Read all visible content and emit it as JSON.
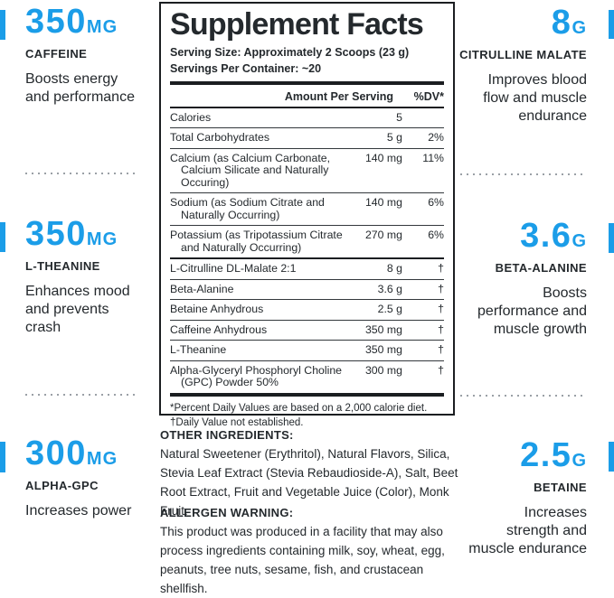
{
  "colors": {
    "accent": "#1b9de8",
    "ink": "#24292d"
  },
  "callouts": {
    "left": [
      {
        "value": "350",
        "unit": "MG",
        "name": "CAFFEINE",
        "desc": "Boosts energy\nand performance"
      },
      {
        "value": "350",
        "unit": "MG",
        "name": "L-THEANINE",
        "desc": "Enhances mood\nand prevents\ncrash"
      },
      {
        "value": "300",
        "unit": "MG",
        "name": "ALPHA-GPC",
        "desc": "Increases power"
      }
    ],
    "right": [
      {
        "value": "8",
        "unit": "G",
        "name": "CITRULLINE MALATE",
        "desc": "Improves blood\nflow and muscle\nendurance"
      },
      {
        "value": "3.6",
        "unit": "G",
        "name": "BETA-ALANINE",
        "desc": "Boosts\nperformance and\nmuscle growth"
      },
      {
        "value": "2.5",
        "unit": "G",
        "name": "BETAINE",
        "desc": "Increases\nstrength and\nmuscle endurance"
      }
    ]
  },
  "facts": {
    "title": "Supplement Facts",
    "serving_size": "Serving Size: Approximately 2 Scoops (23 g)",
    "servings_per_container": "Servings Per Container: ~20",
    "col_amount": "Amount Per Serving",
    "col_dv": "%DV*",
    "rows": [
      {
        "name": "Calories",
        "amount": "5",
        "dv": ""
      },
      {
        "name": "Total Carbohydrates",
        "amount": "5 g",
        "dv": "2%"
      },
      {
        "name": "Calcium (as Calcium Carbonate, Calcium Silicate and Naturally Occuring)",
        "amount": "140 mg",
        "dv": "11%"
      },
      {
        "name": "Sodium (as Sodium Citrate and Naturally Occurring)",
        "amount": "140 mg",
        "dv": "6%"
      },
      {
        "name": "Potassium (as Tripotassium Citrate and Naturally Occurring)",
        "amount": "270 mg",
        "dv": "6%"
      },
      {
        "name": "L-Citrulline DL-Malate 2:1",
        "amount": "8 g",
        "dv": "†",
        "thick_top": true
      },
      {
        "name": "Beta-Alanine",
        "amount": "3.6 g",
        "dv": "†"
      },
      {
        "name": "Betaine Anhydrous",
        "amount": "2.5 g",
        "dv": "†"
      },
      {
        "name": "Caffeine Anhydrous",
        "amount": "350 mg",
        "dv": "†"
      },
      {
        "name": "L-Theanine",
        "amount": "350 mg",
        "dv": "†"
      },
      {
        "name": "Alpha-Glyceryl Phosphoryl Choline (GPC) Powder 50%",
        "amount": "300 mg",
        "dv": "†"
      }
    ],
    "footnote_dv": "*Percent Daily Values are based on a 2,000 calorie diet.",
    "footnote_daily": "†Daily Value not established."
  },
  "other_ingredients": {
    "heading": "OTHER INGREDIENTS:",
    "body": "Natural Sweetener (Erythritol), Natural Flavors, Silica, Stevia Leaf Extract (Stevia Rebaudioside-A), Salt, Beet Root Extract, Fruit and Vegetable Juice (Color), Monk Fruit."
  },
  "allergen": {
    "heading": "ALLERGEN WARNING:",
    "body": "This product was produced in a facility that may also process ingredients containing milk, soy, wheat, egg, peanuts, tree nuts, sesame, fish, and crustacean shellfish."
  }
}
